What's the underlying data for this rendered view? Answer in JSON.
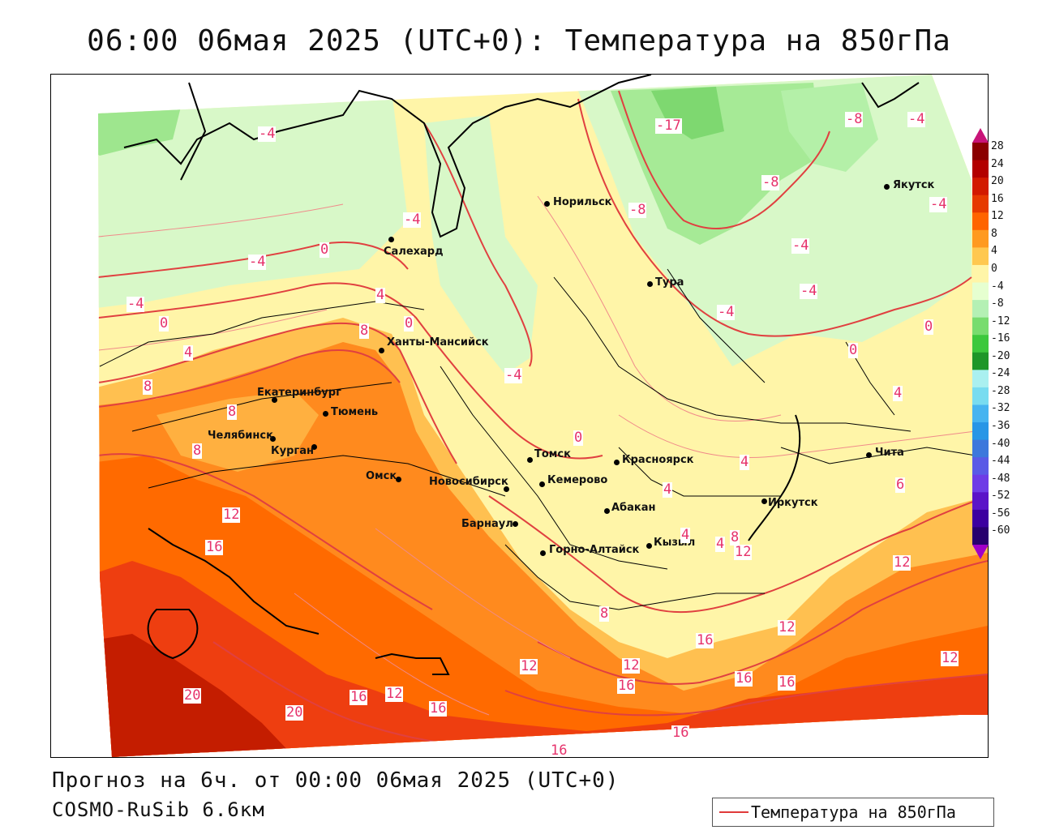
{
  "title": "06:00 06мая 2025 (UTC+0): Температура на 850гПа",
  "forecast_line": "Прогноз на 6ч. от 00:00 06мая 2025 (UTC+0)",
  "model_line": "COSMO-RuSib 6.6км",
  "legend_label": "Температура на 850гПа",
  "colorbar": {
    "labels": [
      "28",
      "24",
      "20",
      "16",
      "12",
      "8",
      "4",
      "0",
      "-4",
      "-8",
      "-12",
      "-16",
      "-20",
      "-24",
      "-28",
      "-32",
      "-36",
      "-40",
      "-44",
      "-48",
      "-52",
      "-56",
      "-60"
    ],
    "colors": [
      "#8b0000",
      "#b30000",
      "#d21a00",
      "#e63a00",
      "#ff6400",
      "#ff9a20",
      "#ffc850",
      "#fff5a8",
      "#e6ffd0",
      "#b4f0b4",
      "#78dc6e",
      "#3cc83c",
      "#1e9628",
      "#aaf0f0",
      "#78dcf0",
      "#46b4f0",
      "#2896e6",
      "#3c78dc",
      "#5a5ae6",
      "#6e3ce6",
      "#5a14c8",
      "#3c00a0",
      "#28006e"
    ]
  },
  "cities": [
    {
      "name": "Норильск"
    },
    {
      "name": "Якутск"
    },
    {
      "name": "Салехард"
    },
    {
      "name": "Тура"
    },
    {
      "name": "Ханты-Мансийск"
    },
    {
      "name": "Екатеринбург"
    },
    {
      "name": "Тюмень"
    },
    {
      "name": "Челябинск"
    },
    {
      "name": "Курган"
    },
    {
      "name": "Омск"
    },
    {
      "name": "Новосибирск"
    },
    {
      "name": "Томск"
    },
    {
      "name": "Кемерово"
    },
    {
      "name": "Красноярск"
    },
    {
      "name": "Барнаул"
    },
    {
      "name": "Абакан"
    },
    {
      "name": "Горно-Алтайск"
    },
    {
      "name": "Кызыл"
    },
    {
      "name": "Иркутск"
    },
    {
      "name": "Чита"
    }
  ],
  "contour_labels": [
    "-4",
    "-17",
    "-8",
    "-4",
    "-8",
    "-4",
    "-8",
    "-4",
    "-4",
    "0",
    "-4",
    "-4",
    "-4",
    "0",
    "4",
    "0",
    "8",
    "0",
    "-4",
    "4",
    "0",
    "4",
    "8",
    "8",
    "8",
    "0",
    "4",
    "-4",
    "12",
    "16",
    "4",
    "4",
    "4",
    "8",
    "12",
    "6",
    "12",
    "8",
    "12",
    "16",
    "12",
    "12",
    "20",
    "20",
    "16",
    "12",
    "16",
    "16",
    "16",
    "16",
    "16",
    "12",
    "16"
  ]
}
